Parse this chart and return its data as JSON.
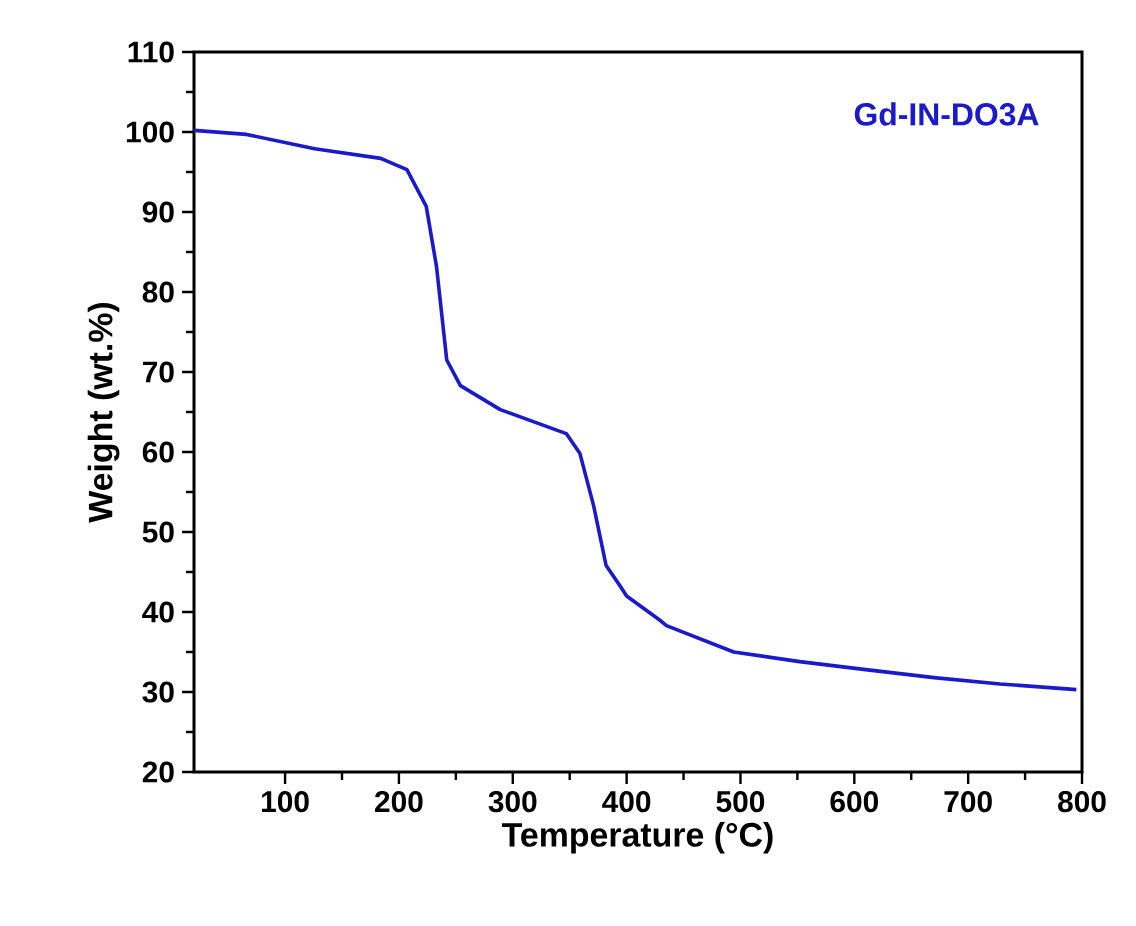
{
  "chart_data": {
    "type": "line",
    "xlabel": "Temperature (°C)",
    "ylabel": "Weight (wt.%)",
    "xlim": [
      20,
      800
    ],
    "xticks": [
      100,
      200,
      300,
      400,
      500,
      600,
      700,
      800
    ],
    "ylim": [
      20,
      110
    ],
    "yticks": [
      20,
      30,
      40,
      50,
      60,
      70,
      80,
      90,
      100,
      110
    ],
    "legend": "top right",
    "grid": false,
    "marker": "none",
    "line_style": "solid",
    "series": [
      {
        "name": "Gd-IN-DO3A",
        "color": "#1a1acc",
        "x": [
          20,
          66,
          126,
          184,
          207,
          224,
          233,
          242,
          254,
          289,
          347,
          359,
          371,
          382,
          394,
          400,
          429,
          435,
          494,
          552,
          610,
          670,
          728,
          795
        ],
        "values": [
          100.2,
          99.7,
          97.9,
          96.7,
          95.3,
          90.7,
          83.2,
          71.5,
          68.3,
          65.3,
          62.3,
          59.8,
          53.3,
          45.8,
          43.3,
          42,
          39,
          38.3,
          35,
          33.8,
          32.8,
          31.8,
          31,
          30.3
        ]
      }
    ]
  }
}
